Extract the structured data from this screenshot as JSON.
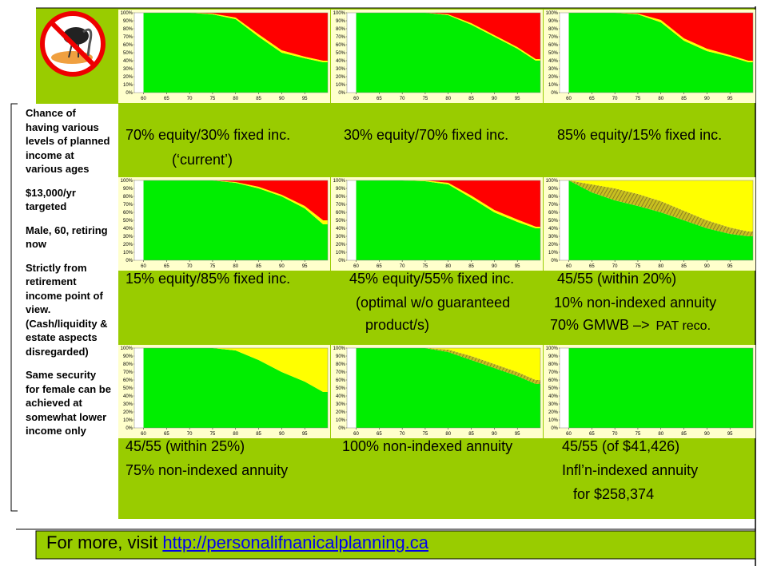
{
  "slide": {
    "sidebar": [
      "Chance of having various levels of planned income at various ages",
      "$13,000/yr targeted",
      "Male, 60, retiring now",
      "Strictly from retirement income point of view. (Cash/liquidity & estate aspects disregarded)",
      "Same security for female can be achieved at somewhat lower income only"
    ],
    "footer": {
      "text": "For more, visit",
      "link": "http://personalifnanicalplanning.ca"
    },
    "axes": {
      "xlim": [
        58,
        100
      ],
      "ylim": [
        0,
        100
      ],
      "xticks": [
        60,
        65,
        70,
        75,
        80,
        85,
        90,
        95
      ],
      "yticks": [
        {
          "value": 0,
          "label": "0%"
        },
        {
          "value": 10,
          "label": "10%"
        },
        {
          "value": 20,
          "label": "20%"
        },
        {
          "value": 30,
          "label": "30%"
        },
        {
          "value": 40,
          "label": "40%"
        },
        {
          "value": 50,
          "label": "50%"
        },
        {
          "value": 60,
          "label": "60%"
        },
        {
          "value": 70,
          "label": "70%"
        },
        {
          "value": 80,
          "label": "80%"
        },
        {
          "value": 90,
          "label": "90%"
        },
        {
          "value": 100,
          "label": "100%"
        }
      ]
    },
    "panels": [
      {
        "type": "area",
        "x": [
          60,
          65,
          70,
          75,
          80,
          85,
          90,
          95,
          99
        ],
        "captions": [
          "70% equity/30% fixed inc.",
          "(‘current’)"
        ],
        "series": [
          {
            "color": "#00ee00",
            "values": [
              100,
              100,
              100,
              98,
              92,
              70,
              50,
              43,
              38
            ]
          },
          {
            "color": "#ffff00",
            "values": [
              0,
              0,
              0,
              1,
              2,
              3,
              3,
              2,
              2
            ]
          },
          {
            "color": "#ff0000",
            "values": [
              0,
              0,
              0,
              1,
              6,
              27,
              47,
              55,
              60
            ]
          }
        ]
      },
      {
        "type": "area",
        "x": [
          60,
          65,
          70,
          75,
          80,
          85,
          90,
          95,
          99
        ],
        "captions": [
          "30% equity/70% fixed inc."
        ],
        "series": [
          {
            "color": "#00ee00",
            "values": [
              100,
              100,
              100,
              100,
              97,
              85,
              70,
              55,
              40
            ]
          },
          {
            "color": "#ffff00",
            "values": [
              0,
              0,
              0,
              0,
              1,
              2,
              2,
              2,
              2
            ]
          },
          {
            "color": "#ff0000",
            "values": [
              0,
              0,
              0,
              0,
              2,
              13,
              28,
              43,
              58
            ]
          }
        ]
      },
      {
        "type": "area",
        "x": [
          60,
          65,
          70,
          75,
          80,
          85,
          90,
          95,
          99
        ],
        "captions": [
          "85% equity/15% fixed inc."
        ],
        "series": [
          {
            "color": "#00ee00",
            "values": [
              100,
              100,
              100,
              98,
              88,
              65,
              52,
              45,
              38
            ]
          },
          {
            "color": "#ffff00",
            "values": [
              0,
              0,
              0,
              1,
              3,
              3,
              3,
              2,
              2
            ]
          },
          {
            "color": "#ff0000",
            "values": [
              0,
              0,
              0,
              1,
              9,
              32,
              45,
              53,
              60
            ]
          }
        ]
      },
      {
        "type": "area",
        "x": [
          60,
          65,
          70,
          75,
          80,
          85,
          90,
          95,
          99
        ],
        "captions": [
          "15% equity/85% fixed inc."
        ],
        "series": [
          {
            "color": "#00ee00",
            "values": [
              100,
              100,
              100,
              100,
              97,
              90,
              80,
              65,
              45
            ]
          },
          {
            "color": "#ffff00",
            "values": [
              0,
              0,
              0,
              0,
              1,
              2,
              2,
              3,
              5
            ]
          },
          {
            "color": "#ff0000",
            "values": [
              0,
              0,
              0,
              0,
              2,
              8,
              18,
              32,
              50
            ]
          }
        ]
      },
      {
        "type": "area",
        "x": [
          60,
          65,
          70,
          75,
          80,
          85,
          90,
          95,
          99
        ],
        "captions": [
          "45% equity/55% fixed inc.",
          "(optimal w/o guaranteed",
          "product/s)"
        ],
        "series": [
          {
            "color": "#00ee00",
            "values": [
              100,
              100,
              100,
              99,
              95,
              78,
              60,
              48,
              40
            ]
          },
          {
            "color": "#ffff00",
            "values": [
              0,
              0,
              0,
              1,
              2,
              3,
              3,
              3,
              2
            ]
          },
          {
            "color": "#ff0000",
            "values": [
              0,
              0,
              0,
              0,
              3,
              19,
              37,
              49,
              58
            ]
          }
        ]
      },
      {
        "type": "area",
        "x": [
          60,
          65,
          70,
          75,
          80,
          85,
          90,
          95,
          99
        ],
        "captions": [
          "45/55 (within 20%)",
          "10% non-indexed annuity",
          "70% GMWB –>"
        ],
        "note": "PAT reco.",
        "series": [
          {
            "color": "#00ee00",
            "values": [
              100,
              85,
              75,
              68,
              60,
              50,
              40,
              33,
              30
            ]
          },
          {
            "color": "#a89a30",
            "values": [
              0,
              10,
              15,
              15,
              14,
              12,
              10,
              8,
              6
            ]
          },
          {
            "color": "#ffff00",
            "values": [
              0,
              5,
              10,
              17,
              26,
              38,
              50,
              59,
              64
            ]
          }
        ]
      },
      {
        "type": "area",
        "x": [
          60,
          65,
          70,
          75,
          80,
          85,
          90,
          95,
          99
        ],
        "captions": [
          "45/55 (within 25%)",
          "75% non-indexed annuity"
        ],
        "series": [
          {
            "color": "#00ee00",
            "values": [
              100,
              100,
              100,
              100,
              97,
              85,
              70,
              58,
              45
            ]
          },
          {
            "color": "#ffff00",
            "values": [
              0,
              0,
              0,
              0,
              3,
              15,
              30,
              42,
              55
            ]
          }
        ]
      },
      {
        "type": "area",
        "x": [
          60,
          65,
          70,
          75,
          80,
          85,
          90,
          95,
          99
        ],
        "captions": [
          "100% non-indexed annuity"
        ],
        "series": [
          {
            "color": "#00ee00",
            "values": [
              100,
              100,
              100,
              100,
              95,
              85,
              75,
              65,
              55
            ]
          },
          {
            "color": "#a89a30",
            "values": [
              0,
              0,
              0,
              0,
              3,
              5,
              5,
              5,
              5
            ]
          },
          {
            "color": "#ffff00",
            "values": [
              0,
              0,
              0,
              0,
              2,
              10,
              20,
              30,
              40
            ]
          }
        ]
      },
      {
        "type": "area",
        "x": [
          60,
          65,
          70,
          75,
          80,
          85,
          90,
          95,
          99
        ],
        "captions": [
          "45/55 (of $41,426)",
          "Infl’n-indexed annuity",
          "for $258,374"
        ],
        "series": [
          {
            "color": "#00ee00",
            "values": [
              100,
              100,
              100,
              100,
              100,
              100,
              100,
              100,
              100
            ]
          }
        ]
      }
    ]
  }
}
